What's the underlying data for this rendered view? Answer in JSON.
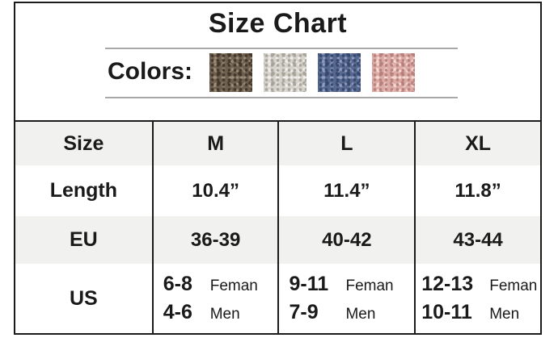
{
  "title": "Size Chart",
  "colors_section": {
    "label": "Colors:",
    "swatches": [
      {
        "name": "brown",
        "base": "#6f6050",
        "dark": "#42372a",
        "light": "#9b8d79"
      },
      {
        "name": "ivory-gray",
        "base": "#d6d3cd",
        "dark": "#a8a49a",
        "light": "#f1efec"
      },
      {
        "name": "blue",
        "base": "#58698f",
        "dark": "#36486f",
        "light": "#8f9cbd"
      },
      {
        "name": "pink",
        "base": "#dcaba6",
        "dark": "#b8807d",
        "light": "#f3d9d4"
      }
    ]
  },
  "table": {
    "header": [
      "Size",
      "M",
      "L",
      "XL"
    ],
    "length_row": {
      "label": "Length",
      "values": [
        "10.4”",
        "11.4”",
        "11.8”"
      ]
    },
    "eu_row": {
      "label": "EU",
      "values": [
        "36-39",
        "40-42",
        "43-44"
      ]
    },
    "us_row": {
      "label": "US",
      "cells": [
        {
          "female_num": "6-8",
          "female_label": "Feman",
          "men_num": "4-6",
          "men_label": "Men"
        },
        {
          "female_num": "9-11",
          "female_label": "Feman",
          "men_num": "7-9",
          "men_label": "Men"
        },
        {
          "female_num": "12-13",
          "female_label": "Feman",
          "men_num": "10-11",
          "men_label": "Men"
        }
      ]
    }
  },
  "style": {
    "border": "#1b1b1b",
    "rule": "#a8a8a8",
    "shaded_row": "#f1f1f0",
    "text": "#1a1a1a"
  },
  "chart_data": {
    "type": "table",
    "title": "Size Chart",
    "columns": [
      "Size",
      "M",
      "L",
      "XL"
    ],
    "rows": [
      [
        "Length",
        "10.4”",
        "11.4”",
        "11.8”"
      ],
      [
        "EU",
        "36-39",
        "40-42",
        "43-44"
      ],
      [
        "US",
        "6-8 Feman / 4-6 Men",
        "9-11 Feman / 7-9 Men",
        "12-13 Feman / 10-11 Men"
      ]
    ],
    "color_options": [
      "brown",
      "ivory-gray",
      "blue",
      "pink"
    ]
  }
}
